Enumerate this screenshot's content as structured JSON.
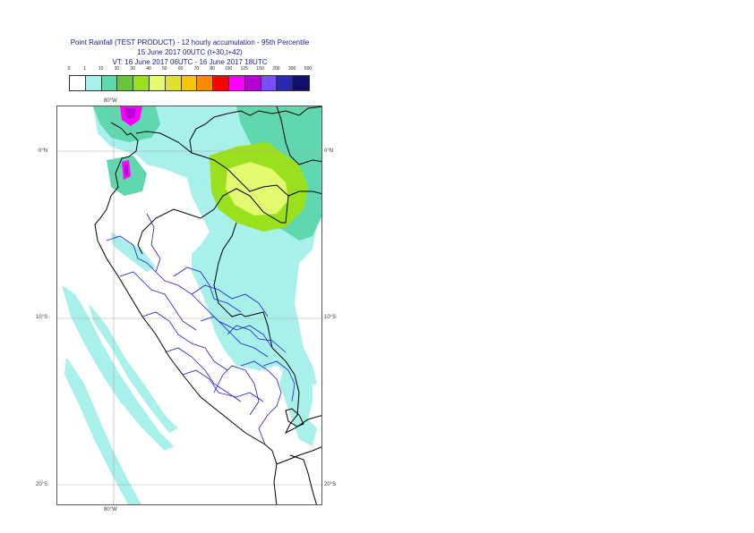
{
  "title": {
    "line1": "Point Rainfall (TEST PRODUCT) - 12 hourly accumulation - 95th Percentile",
    "line2": "15 June 2017 00UTC (t+30,t+42)",
    "line3": "VT: 16 June 2017 06UTC - 16 June 2017 18UTC"
  },
  "legend": {
    "thresholds": [
      "0",
      "1",
      "10",
      "20",
      "30",
      "40",
      "50",
      "60",
      "70",
      "80",
      "100",
      "125",
      "150",
      "200",
      "300",
      "500"
    ],
    "colors": [
      "#ffffff",
      "#a8f0ea",
      "#5fd8b0",
      "#6cc33c",
      "#9be01c",
      "#e4f870",
      "#e0e030",
      "#f7c400",
      "#ff8a00",
      "#ff0000",
      "#ff00ff",
      "#b400d2",
      "#7a4dff",
      "#2a2ab0",
      "#10106a"
    ]
  },
  "map": {
    "lon_label_top": "80°W",
    "lon_label_bottom": "80°W",
    "lat_labels_left": [
      "0°N",
      "10°S",
      "20°S"
    ],
    "lat_labels_right": [
      "0°N",
      "10°S",
      "20°S"
    ],
    "colors": {
      "light": "#a8f0ea",
      "medium": "#5fd8b0",
      "green": "#9be01c",
      "yellow": "#e4f870",
      "magenta": "#ff00ff",
      "purple": "#b400d2",
      "coast": "#000000",
      "regions": "#1f1fd6",
      "grid": "#aaaaaa"
    }
  }
}
